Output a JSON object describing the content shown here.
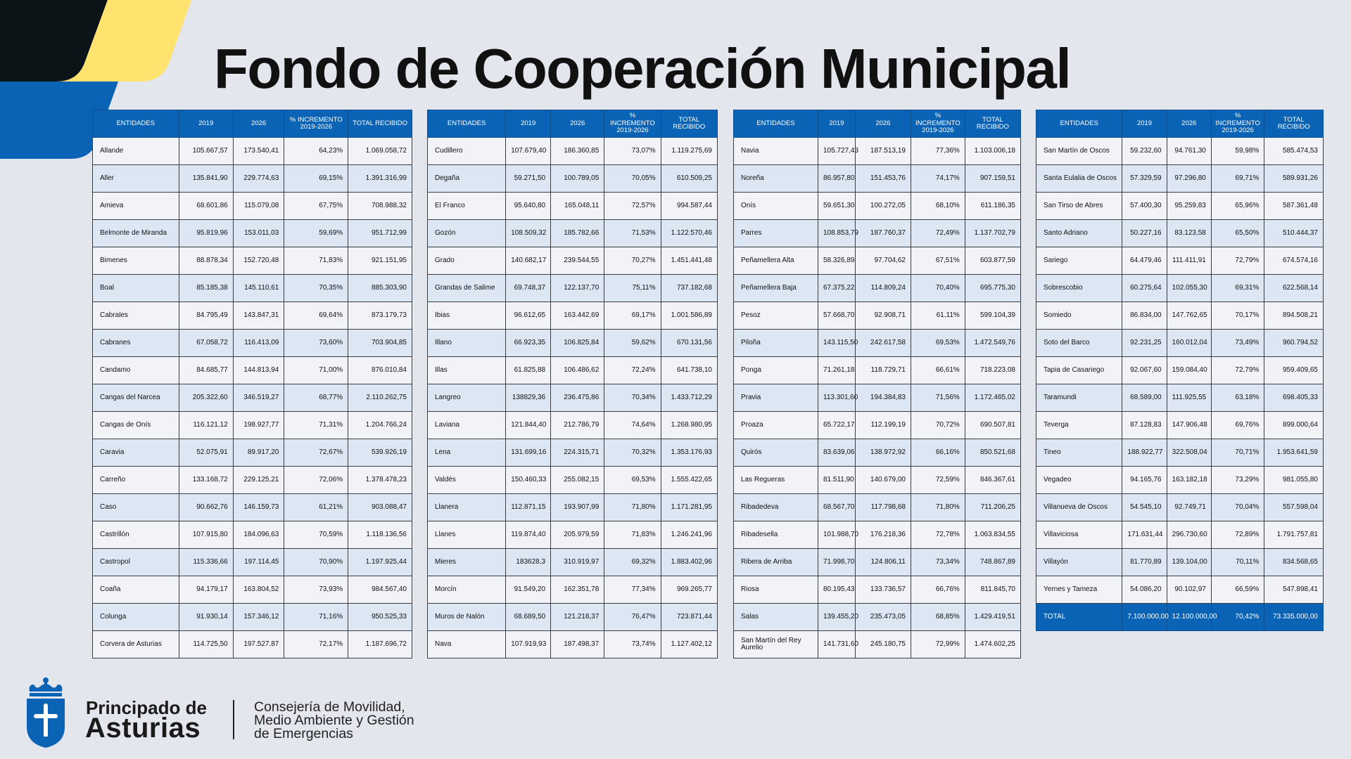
{
  "title": "Fondo de Cooperación Municipal",
  "tables": [
    {
      "header": [
        "ENTIDADES",
        "2019",
        "2026",
        "% INCREMENTO 2019-2026",
        "TOTAL RECIBIDO"
      ],
      "rows": [
        [
          "Allande",
          "105.667,57",
          "173.540,41",
          "64,23%",
          "1.069.058,72"
        ],
        [
          "Aller",
          "135.841,90",
          "229.774,63",
          "69,15%",
          "1.391.316,99"
        ],
        [
          "Amieva",
          "68.601,86",
          "115.079,08",
          "67,75%",
          "708.988,32"
        ],
        [
          "Belmonte de Miranda",
          "95.819,96",
          "153.011,03",
          "59,69%",
          "951.712,99"
        ],
        [
          "Bimenes",
          "88.878,34",
          "152.720,48",
          "71,83%",
          "921.151,95"
        ],
        [
          "Boal",
          "85.185,38",
          "145.110,61",
          "70,35%",
          "885.303,90"
        ],
        [
          "Cabrales",
          "84.795,49",
          "143.847,31",
          "69,64%",
          "873.179,73"
        ],
        [
          "Cabranes",
          "67.058,72",
          "116.413,09",
          "73,60%",
          "703.904,85"
        ],
        [
          "Candamo",
          "84.685,77",
          "144.813,94",
          "71,00%",
          "876.010,84"
        ],
        [
          "Cangas del Narcea",
          "205.322,60",
          "346.519,27",
          "68,77%",
          "2.110.262,75"
        ],
        [
          "Cangas de Onís",
          "116.121,12",
          "198.927,77",
          "71,31%",
          "1.204.766,24"
        ],
        [
          "Caravia",
          "52.075,91",
          "89.917,20",
          "72,67%",
          "539.926,19"
        ],
        [
          "Carreño",
          "133.168,72",
          "229.125,21",
          "72,06%",
          "1.378.478,23"
        ],
        [
          "Caso",
          "90.662,76",
          "146.159,73",
          "61,21%",
          "903.088,47"
        ],
        [
          "Castrillón",
          "107.915,80",
          "184.096,63",
          "70,59%",
          "1.118.136,56"
        ],
        [
          "Castropol",
          "115.336,66",
          "197.114,45",
          "70,90%",
          "1.197.925,44"
        ],
        [
          "Coaña",
          "94.179,17",
          "163.804,52",
          "73,93%",
          "984.567,40"
        ],
        [
          "Colunga",
          "91.930,14",
          "157.346,12",
          "71,16%",
          "950.525,33"
        ],
        [
          "Corvera de Asturias",
          "114.725,50",
          "197.527,87",
          "72,17%",
          "1.187.696,72"
        ]
      ]
    },
    {
      "header": [
        "ENTIDADES",
        "2019",
        "2026",
        "% INCREMENTO 2019-2026",
        "TOTAL RECIBIDO"
      ],
      "rows": [
        [
          "Cudillero",
          "107.679,40",
          "186.360,85",
          "73,07%",
          "1.119.275,69"
        ],
        [
          "Degaña",
          "59.271,50",
          "100.789,05",
          "70,05%",
          "610.509,25"
        ],
        [
          "El Franco",
          "95.640,80",
          "165.048,11",
          "72,57%",
          "994.587,44"
        ],
        [
          "Gozón",
          "108.509,32",
          "185.782,66",
          "71,53%",
          "1.122.570,46"
        ],
        [
          "Grado",
          "140.682,17",
          "239.544,55",
          "70,27%",
          "1.451.441,48"
        ],
        [
          "Grandas de Salime",
          "69.748,37",
          "122.137,70",
          "75,11%",
          "737.182,68"
        ],
        [
          "Ibias",
          "96.612,65",
          "163.442,69",
          "69,17%",
          "1.001.586,89"
        ],
        [
          "Illano",
          "66.923,35",
          "106.825,84",
          "59,62%",
          "670.131,56"
        ],
        [
          "Illas",
          "61.825,88",
          "106.486,62",
          "72,24%",
          "641.738,10"
        ],
        [
          "Langreo",
          "138829,36",
          "236.475,86",
          "70,34%",
          "1.433.712,29"
        ],
        [
          "Laviana",
          "121.844,40",
          "212.786,79",
          "74,64%",
          "1.268.980,95"
        ],
        [
          "Lena",
          "131.699,16",
          "224.315,71",
          "70,32%",
          "1.353.176,93"
        ],
        [
          "Valdés",
          "150.460,33",
          "255.082,15",
          "69,53%",
          "1.555.422,65"
        ],
        [
          "Llanera",
          "112.871,15",
          "193.907,99",
          "71,80%",
          "1.171.281,95"
        ],
        [
          "Llanes",
          "119.874,40",
          "205.979,59",
          "71,83%",
          "1.246.241,96"
        ],
        [
          "Mieres",
          "183628,3",
          "310.919,97",
          "69,32%",
          "1.883.402,96"
        ],
        [
          "Morcín",
          "91.549,20",
          "162.351,78",
          "77,34%",
          "969.265,77"
        ],
        [
          "Muros de Nalón",
          "68.689,50",
          "121.218,37",
          "76,47%",
          "723.871,44"
        ],
        [
          "Nava",
          "107.919,93",
          "187.498,37",
          "73,74%",
          "1.127.402,12"
        ]
      ]
    },
    {
      "header": [
        "ENTIDADES",
        "2019",
        "2026",
        "% INCREMENTO 2019-2026",
        "TOTAL RECIBIDO"
      ],
      "rows": [
        [
          "Navia",
          "105.727,43",
          "187.513,19",
          "77,36%",
          "1.103.006,18"
        ],
        [
          "Noreña",
          "86.957,80",
          "151.453,76",
          "74,17%",
          "907.159,51"
        ],
        [
          "Onís",
          "59.651,30",
          "100.272,05",
          "68,10%",
          "611.186,35"
        ],
        [
          "Parres",
          "108.853,79",
          "187.760,37",
          "72,49%",
          "1.137.702,79"
        ],
        [
          "Peñamellera Alta",
          "58.326,89",
          "97.704,62",
          "67,51%",
          "603.877,59"
        ],
        [
          "Peñamellera Baja",
          "67.375,22",
          "114.809,24",
          "70,40%",
          "695.775,30"
        ],
        [
          "Pesoz",
          "57.668,70",
          "92.908,71",
          "61,11%",
          "599.104,39"
        ],
        [
          "Piloña",
          "143.115,50",
          "242.617,58",
          "69,53%",
          "1.472.549,76"
        ],
        [
          "Ponga",
          "71.261,18",
          "118.729,71",
          "66,61%",
          "718.223,08"
        ],
        [
          "Pravia",
          "113.301,60",
          "194.384,83",
          "71,56%",
          "1.172.465,02"
        ],
        [
          "Proaza",
          "65.722,17",
          "112.199,19",
          "70,72%",
          "690.507,81"
        ],
        [
          "Quirós",
          "83.639,06",
          "138.972,92",
          "66,16%",
          "850.521,68"
        ],
        [
          "Las Regueras",
          "81.511,90",
          "140.679,00",
          "72,59%",
          "846.367,61"
        ],
        [
          "Ribadedeva",
          "68.567,70",
          "117.798,68",
          "71,80%",
          "711.206,25"
        ],
        [
          "Ribadesella",
          "101.988,70",
          "176.218,36",
          "72,78%",
          "1.063.834,55"
        ],
        [
          "Ribera de Arriba",
          "71.998,70",
          "124.806,11",
          "73,34%",
          "748.867,89"
        ],
        [
          "Riosa",
          "80.195,43",
          "133.736,57",
          "66,76%",
          "811.845,70"
        ],
        [
          "Salas",
          "139.455,20",
          "235.473,05",
          "68,85%",
          "1.429.419,51"
        ],
        [
          "San Martín del Rey Aurelio",
          "141.731,60",
          "245.180,75",
          "72,99%",
          "1.474.602,25"
        ]
      ]
    },
    {
      "header": [
        "ENTIDADES",
        "2019",
        "2026",
        "% INCREMENTO 2019-2026",
        "TOTAL RECIBIDO"
      ],
      "rows": [
        [
          "San Martín de Oscos",
          "59.232,60",
          "94.761,30",
          "59,98%",
          "585.474,53"
        ],
        [
          "Santa Eulalia de Oscos",
          "57.329,59",
          "97.296,80",
          "69,71%",
          "589.931,26"
        ],
        [
          "San Tirso de Abres",
          "57.400,30",
          "95.259,83",
          "65,96%",
          "587.361,48"
        ],
        [
          "Santo Adriano",
          "50.227,16",
          "83.123,58",
          "65,50%",
          "510.444,37"
        ],
        [
          "Sariego",
          "64.479,46",
          "111.411,91",
          "72,79%",
          "674.574,16"
        ],
        [
          "Sobrescobio",
          "60.275,64",
          "102.055,30",
          "69,31%",
          "622.568,14"
        ],
        [
          "Somiedo",
          "86.834,00",
          "147.762,65",
          "70,17%",
          "894.508,21"
        ],
        [
          "Soto del Barco",
          "92.231,25",
          "160.012,04",
          "73,49%",
          "960.794,52"
        ],
        [
          "Tapia de Casariego",
          "92.067,60",
          "159.084,40",
          "72,79%",
          "959.409,65"
        ],
        [
          "Taramundi",
          "68.589,00",
          "111.925,55",
          "63,18%",
          "698.405,33"
        ],
        [
          "Teverga",
          "87.128,83",
          "147.906,48",
          "69,76%",
          "899.000,64"
        ],
        [
          "Tineo",
          "188.922,77",
          "322.508,04",
          "70,71%",
          "1.953.641,59"
        ],
        [
          "Vegadeo",
          "94.165,76",
          "163.182,18",
          "73,29%",
          "981.055,80"
        ],
        [
          "Villanueva de Oscos",
          "54.545,10",
          "92.749,71",
          "70,04%",
          "557.598,04"
        ],
        [
          "Villaviciosa",
          "171.631,44",
          "296.730,60",
          "72,89%",
          "1.791.757,81"
        ],
        [
          "Villayón",
          "81.770,89",
          "139.104,00",
          "70,11%",
          "834.568,65"
        ],
        [
          "Yernes y Tameza",
          "54.086,20",
          "90.102,97",
          "66,59%",
          "547.898,41"
        ]
      ],
      "total": [
        "TOTAL",
        "7.100.000,00",
        "12.100.000,00",
        "70,42%",
        "73.335.000,00"
      ]
    }
  ],
  "footer": {
    "logo": [
      "Principado de",
      "Asturias"
    ],
    "department": [
      "Consejería de Movilidad,",
      "Medio Ambiente y Gestión",
      "de Emergencias"
    ]
  }
}
